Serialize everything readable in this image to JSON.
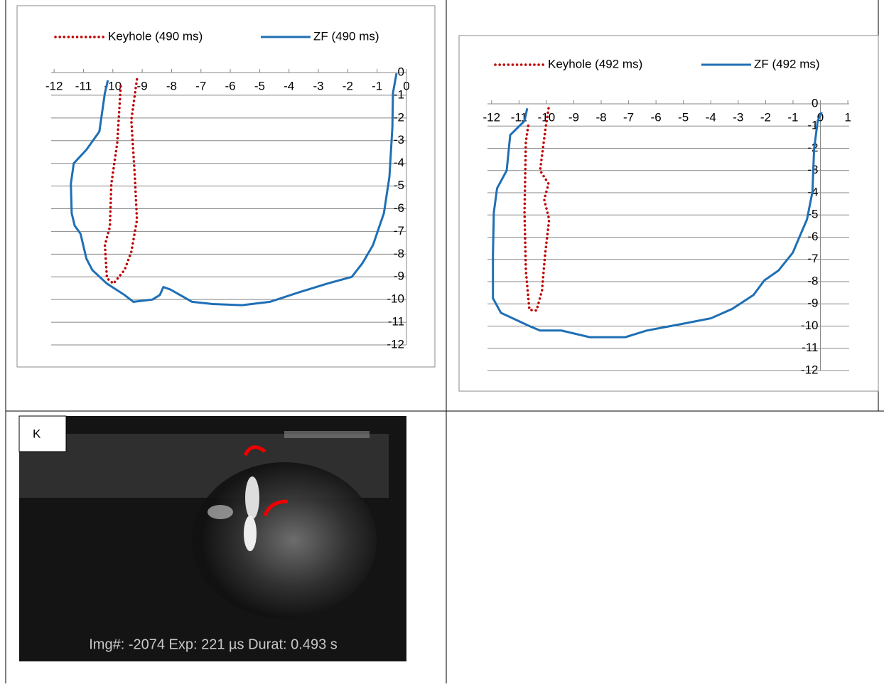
{
  "chart_data": [
    {
      "type": "line",
      "xlim": [
        -12.1,
        0
      ],
      "ylim": [
        -12,
        0
      ],
      "xticks": [
        -12,
        -11,
        -10,
        -9,
        -8,
        -7,
        -6,
        -5,
        -4,
        -3,
        -2,
        -1,
        0
      ],
      "yticks": [
        0,
        -1,
        -2,
        -3,
        -4,
        -5,
        -6,
        -7,
        -8,
        -9,
        -10,
        -11,
        -12
      ],
      "grid": true,
      "series": [
        {
          "name": "Keyhole (490 ms)",
          "color": "#c00000",
          "style": "dotted",
          "x": [
            -9.18,
            -9.37,
            -9.25,
            -9.18,
            -9.37,
            -9.6,
            -9.98,
            -10.2,
            -10.27,
            -10.1,
            -10.05,
            -9.85,
            -9.73
          ],
          "values": [
            -0.3,
            -2.1,
            -4.6,
            -6.5,
            -7.9,
            -8.7,
            -9.3,
            -9.06,
            -7.6,
            -6.8,
            -4.9,
            -3.1,
            -0.6
          ]
        },
        {
          "name": "ZF (490 ms)",
          "color": "#1f6fb5",
          "style": "solid",
          "x": [
            -10.17,
            -10.27,
            -10.46,
            -10.9,
            -11.33,
            -11.43,
            -11.4,
            -11.3,
            -11.1,
            -10.9,
            -10.7,
            -10.2,
            -9.6,
            -9.3,
            -8.65,
            -8.4,
            -8.28,
            -8.04,
            -7.3,
            -6.6,
            -5.6,
            -4.65,
            -3.7,
            -2.7,
            -1.86,
            -1.5,
            -1.14,
            -0.77,
            -0.58,
            -0.48,
            -0.46,
            -0.34
          ],
          "values": [
            -0.34,
            -0.9,
            -2.6,
            -3.4,
            -4,
            -4.9,
            -6.2,
            -6.75,
            -7.1,
            -8.2,
            -8.7,
            -9.3,
            -9.8,
            -10.1,
            -10,
            -9.8,
            -9.45,
            -9.56,
            -10.1,
            -10.2,
            -10.25,
            -10.1,
            -9.7,
            -9.3,
            -9,
            -8.4,
            -7.6,
            -6.2,
            -4.6,
            -2.4,
            -0.9,
            -0.03
          ]
        }
      ]
    },
    {
      "type": "line",
      "xlim": [
        -12.15,
        1.05
      ],
      "ylim": [
        -12,
        0
      ],
      "xticks": [
        -12,
        -11,
        -10,
        -9,
        -8,
        -7,
        -6,
        -5,
        -4,
        -3,
        -2,
        -1,
        0,
        1
      ],
      "yticks": [
        0,
        -1,
        -2,
        -3,
        -4,
        -5,
        -6,
        -7,
        -8,
        -9,
        -10,
        -11,
        -12
      ],
      "grid": true,
      "series": [
        {
          "name": "Keyhole (492 ms)",
          "color": "#c00000",
          "style": "dotted",
          "x": [
            -9.92,
            -10.03,
            -10.23,
            -9.92,
            -10.08,
            -9.9,
            -10.05,
            -10.16,
            -10.36,
            -10.62,
            -10.75,
            -10.8,
            -10.75,
            -10.65
          ],
          "values": [
            -0.2,
            -1.1,
            -3.0,
            -3.6,
            -4.3,
            -5.2,
            -6.8,
            -8.4,
            -9.3,
            -9.27,
            -7.5,
            -4.9,
            -1.7,
            -0.9
          ]
        },
        {
          "name": "ZF (492 ms)",
          "color": "#1f6fb5",
          "style": "solid",
          "x": [
            -10.7,
            -10.8,
            -11.32,
            -11.45,
            -11.8,
            -11.92,
            -11.95,
            -11.95,
            -11.66,
            -10.62,
            -10.23,
            -9.45,
            -8.42,
            -7.12,
            -6.34,
            -5.04,
            -4.0,
            -3.22,
            -2.44,
            -2.05,
            -1.53,
            -1.01,
            -0.49,
            -0.29,
            -0.23,
            -0.1,
            0.05
          ],
          "values": [
            -0.2,
            -0.77,
            -1.4,
            -3.0,
            -3.8,
            -4.9,
            -6.8,
            -8.75,
            -9.4,
            -10.0,
            -10.2,
            -10.2,
            -10.5,
            -10.5,
            -10.2,
            -9.9,
            -9.65,
            -9.23,
            -8.6,
            -7.95,
            -7.5,
            -6.7,
            -5.2,
            -3.96,
            -2.04,
            -0.77,
            -0.38
          ]
        }
      ]
    }
  ],
  "image": {
    "label": "K",
    "caption": "Img#: -2074  Exp: 221 µs  Durat: 0.493 s"
  }
}
